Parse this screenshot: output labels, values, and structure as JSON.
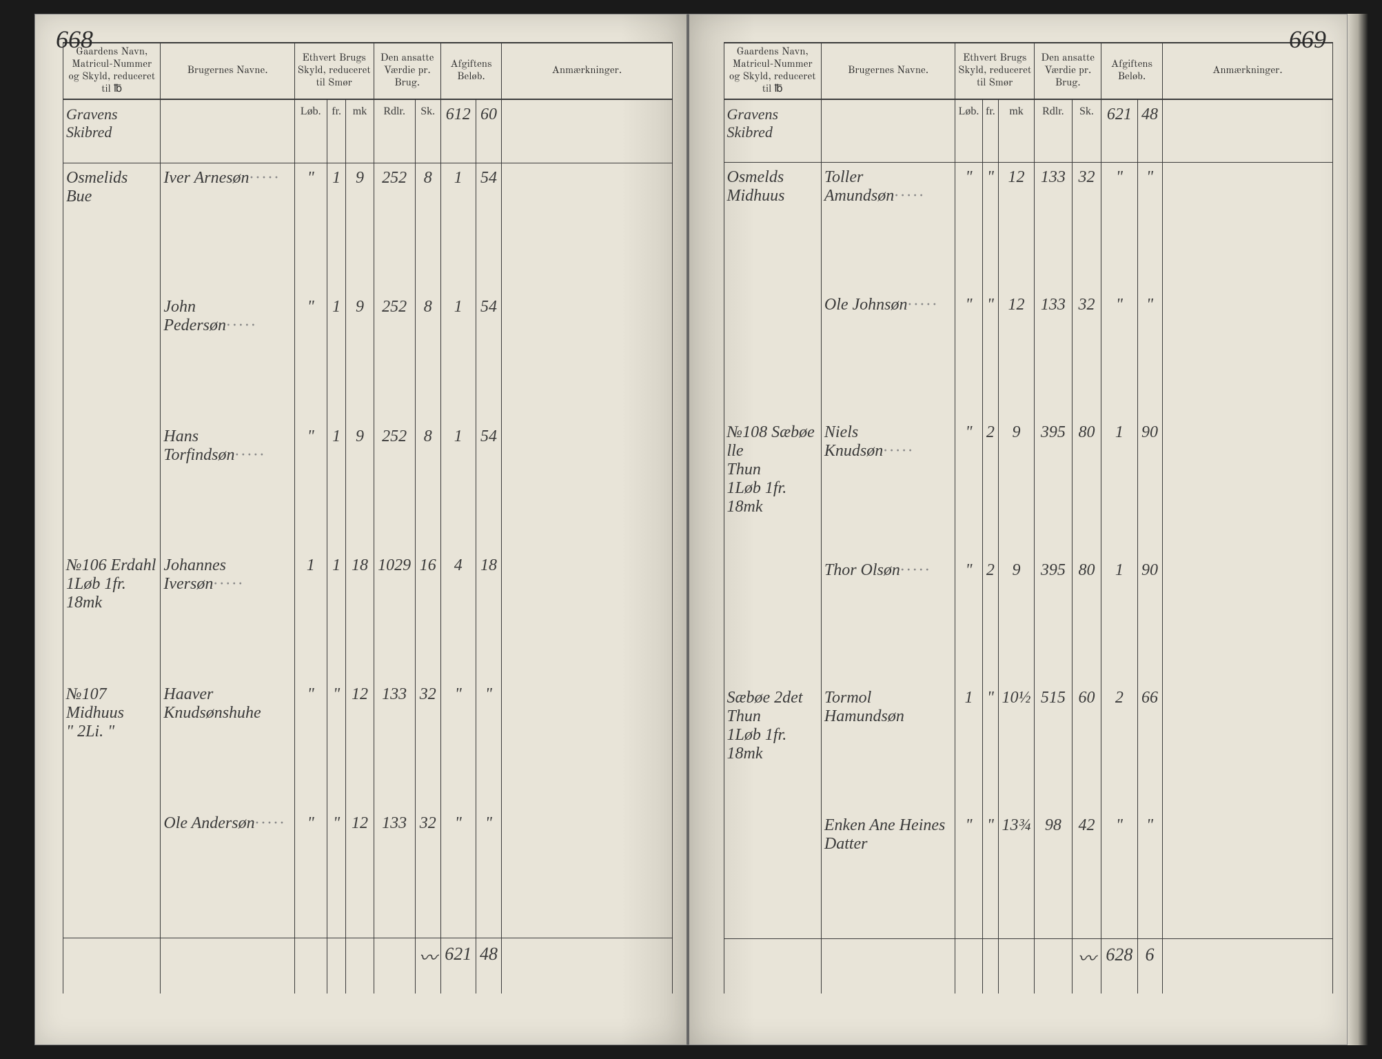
{
  "leftPage": {
    "pageNumber": "668",
    "headers": {
      "gaard": "Gaardens Navn,\nMatricul-Nummer og\nSkyld, reduceret til ℔",
      "bruger": "Brugernes Navne.",
      "skyld": "Ethvert Brugs\nSkyld, reduceret\ntil Smør",
      "vaerdie": "Den ansatte\nVærdie\npr. Brug.",
      "afgift": "Afgiftens\nBeløb.",
      "anm": "Anmærkninger."
    },
    "subheaders": {
      "skyld1": "Løb.",
      "skyld2": "fr.",
      "skyld3": "mk",
      "vaerdie1": "Rdlr.",
      "vaerdie2": "Sk.",
      "afgift1": "",
      "afgift2": "Sk."
    },
    "carryover": {
      "vaerdie1": "",
      "vaerdie2": "",
      "afgift1": "612",
      "afgift2": "60"
    },
    "districtLabel": "Gravens Skibred",
    "rows": [
      {
        "gaard": "Osmelids Bue",
        "bruger": "Iver Arnesøn",
        "s1": "\"",
        "s2": "1",
        "s3": "9",
        "v1": "252",
        "v2": "8",
        "a1": "1",
        "a2": "54"
      },
      {
        "gaard": "",
        "bruger": "John Pedersøn",
        "s1": "\"",
        "s2": "1",
        "s3": "9",
        "v1": "252",
        "v2": "8",
        "a1": "1",
        "a2": "54"
      },
      {
        "gaard": "",
        "bruger": "Hans Torfindsøn",
        "s1": "\"",
        "s2": "1",
        "s3": "9",
        "v1": "252",
        "v2": "8",
        "a1": "1",
        "a2": "54"
      },
      {
        "gaard": "№106 Erdahl\n1Løb 1fr. 18mk",
        "bruger": "Johannes Iversøn",
        "s1": "1",
        "s2": "1",
        "s3": "18",
        "v1": "1029",
        "v2": "16",
        "a1": "4",
        "a2": "18"
      },
      {
        "gaard": "№107 Midhuus\n\" 2Li. \"",
        "bruger": "Haaver Knudsønshuhe",
        "s1": "\"",
        "s2": "\"",
        "s3": "12",
        "v1": "133",
        "v2": "32",
        "a1": "\"",
        "a2": "\""
      },
      {
        "gaard": "",
        "bruger": "Ole Andersøn",
        "s1": "\"",
        "s2": "\"",
        "s3": "12",
        "v1": "133",
        "v2": "32",
        "a1": "\"",
        "a2": "\""
      }
    ],
    "totals": {
      "a1": "621",
      "a2": "48"
    }
  },
  "rightPage": {
    "pageNumber": "669",
    "headers": {
      "gaard": "Gaardens Navn,\nMatricul-Nummer og\nSkyld, reduceret til ℔",
      "bruger": "Brugernes Navne.",
      "skyld": "Ethvert Brugs\nSkyld, reduceret\ntil Smør",
      "vaerdie": "Den ansatte\nVærdie\npr. Brug.",
      "afgift": "Afgiftens\nBeløb.",
      "anm": "Anmærkninger."
    },
    "subheaders": {
      "skyld1": "Løb.",
      "skyld2": "fr.",
      "skyld3": "mk",
      "vaerdie1": "Rdlr.",
      "vaerdie2": "Sk.",
      "afgift1": "",
      "afgift2": "Sk."
    },
    "carryover": {
      "vaerdie1": "",
      "vaerdie2": "",
      "afgift1": "621",
      "afgift2": "48"
    },
    "districtLabel": "Gravens Skibred",
    "rows": [
      {
        "gaard": "Osmelds Midhuus",
        "bruger": "Toller Amundsøn",
        "s1": "\"",
        "s2": "\"",
        "s3": "12",
        "v1": "133",
        "v2": "32",
        "a1": "\"",
        "a2": "\""
      },
      {
        "gaard": "",
        "bruger": "Ole Johnsøn",
        "s1": "\"",
        "s2": "\"",
        "s3": "12",
        "v1": "133",
        "v2": "32",
        "a1": "\"",
        "a2": "\""
      },
      {
        "gaard": "№108 Sæbøe lle\nThun\n1Løb 1fr. 18mk",
        "bruger": "Niels Knudsøn",
        "s1": "\"",
        "s2": "2",
        "s3": "9",
        "v1": "395",
        "v2": "80",
        "a1": "1",
        "a2": "90"
      },
      {
        "gaard": "",
        "bruger": "Thor Olsøn",
        "s1": "\"",
        "s2": "2",
        "s3": "9",
        "v1": "395",
        "v2": "80",
        "a1": "1",
        "a2": "90"
      },
      {
        "gaard": "Sæbøe 2det Thun\n1Løb 1fr. 18mk",
        "bruger": "Tormol Hamundsøn",
        "s1": "1",
        "s2": "\"",
        "s3": "10½",
        "v1": "515",
        "v2": "60",
        "a1": "2",
        "a2": "66"
      },
      {
        "gaard": "",
        "bruger": "Enken Ane Heines\nDatter",
        "s1": "\"",
        "s2": "\"",
        "s3": "13¾",
        "v1": "98",
        "v2": "42",
        "a1": "\"",
        "a2": "\""
      }
    ],
    "totals": {
      "a1": "628",
      "a2": "6"
    }
  },
  "style": {
    "paperColor": "#e8e4d8",
    "inkColor": "#3a3a3a",
    "ruleColor": "#3a3a3a",
    "headerFont": "Georgia, serif",
    "scriptFont": "'Brush Script MT', cursive",
    "pageNumFontSize": 36,
    "cellFontSize": 24
  }
}
